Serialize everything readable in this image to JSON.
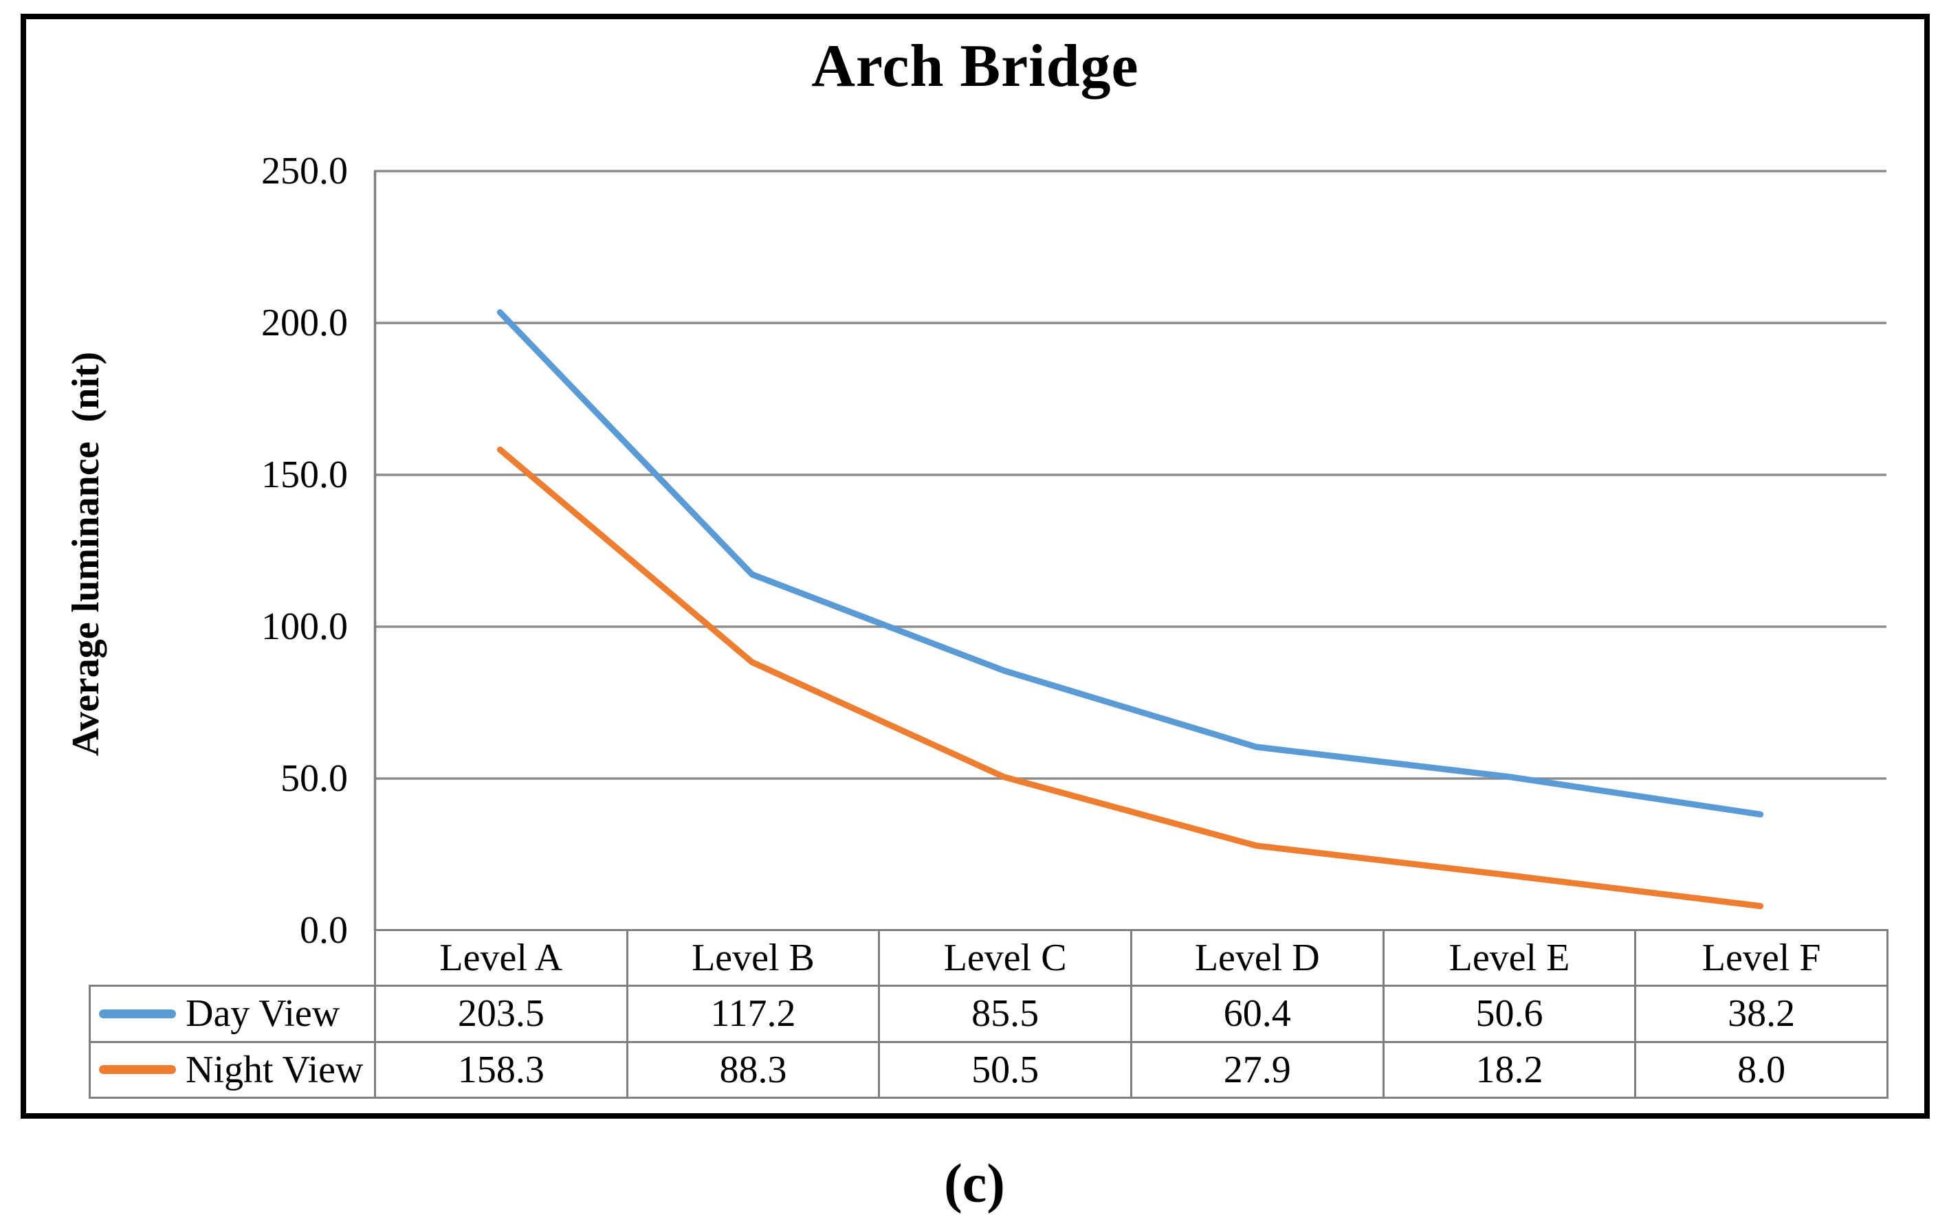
{
  "title": "Arch Bridge",
  "caption": "(c)",
  "y_axis": {
    "label": "Average luminance  (nit)",
    "ticks": [
      "250.0",
      "200.0",
      "150.0",
      "100.0",
      "50.0",
      "0.0"
    ]
  },
  "chart_data": {
    "type": "line",
    "title": "Arch Bridge",
    "categories": [
      "Level A",
      "Level B",
      "Level C",
      "Level D",
      "Level E",
      "Level F"
    ],
    "series": [
      {
        "name": "Day View",
        "color": "#5B9BD5",
        "values": [
          203.5,
          117.2,
          85.5,
          60.4,
          50.6,
          38.2
        ]
      },
      {
        "name": "Night View",
        "color": "#ED7D31",
        "values": [
          158.3,
          88.3,
          50.5,
          27.9,
          18.2,
          8.0
        ]
      }
    ],
    "xlabel": "",
    "ylabel": "Average luminance  (nit)",
    "ylim": [
      0,
      250
    ],
    "ytick_step": 50,
    "grid": true,
    "gridline_color": "#8c8c8c",
    "axis_color": "#7f7f7f",
    "legend_position": "data-table-left"
  },
  "table": {
    "header": [
      "Level A",
      "Level B",
      "Level C",
      "Level D",
      "Level E",
      "Level F"
    ],
    "rows": [
      {
        "label": "Day View",
        "color": "#5B9BD5",
        "values": [
          "203.5",
          "117.2",
          "85.5",
          "60.4",
          "50.6",
          "38.2"
        ]
      },
      {
        "label": "Night View",
        "color": "#ED7D31",
        "values": [
          "158.3",
          "88.3",
          "50.5",
          "27.9",
          "18.2",
          "8.0"
        ]
      }
    ]
  }
}
